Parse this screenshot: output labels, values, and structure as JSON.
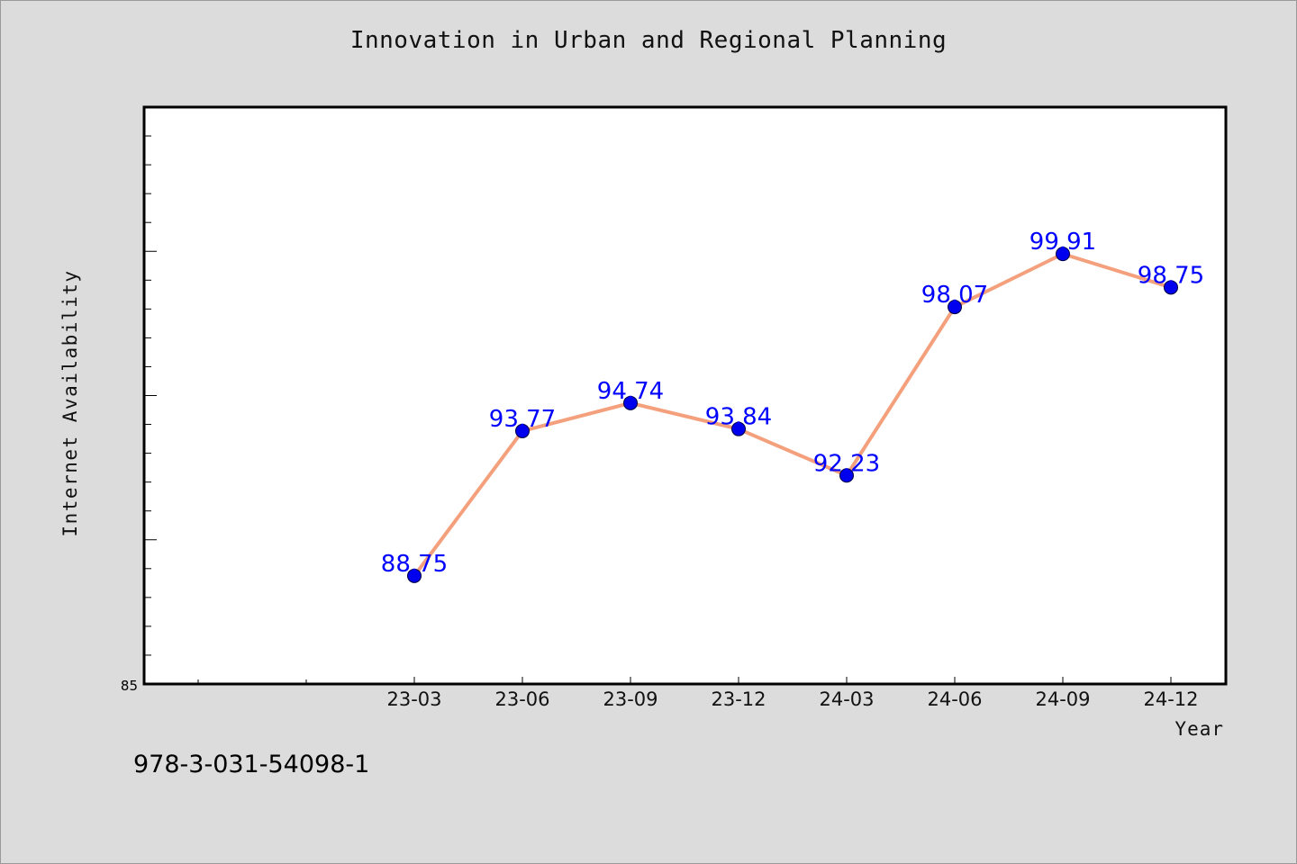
{
  "page": {
    "isbn": "978-3-031-54098-1"
  },
  "chart_data": {
    "type": "line",
    "title": "Innovation in Urban and Regional Planning",
    "xlabel": "Year",
    "ylabel": "Internet Availability",
    "categories": [
      "23-03",
      "23-06",
      "23-09",
      "23-12",
      "24-03",
      "24-06",
      "24-09",
      "24-12"
    ],
    "series": [
      {
        "values": [
          88.75,
          93.77,
          94.74,
          93.84,
          92.23,
          98.07,
          99.91,
          98.75
        ],
        "data_labels": [
          "88.75",
          "93.77",
          "94.74",
          "93.84",
          "92.23",
          "98.07",
          "99.91",
          "98.75"
        ]
      }
    ],
    "ylim": [
      85,
      105
    ],
    "y_tick_labels": [
      "85"
    ],
    "grid": false,
    "legend": "none",
    "colors": {
      "line": "#f4a07c",
      "marker": "#0000ee",
      "data_label": "#0000ff",
      "plot_background": "#ffffff",
      "page_background": "#dcdcdc"
    }
  }
}
